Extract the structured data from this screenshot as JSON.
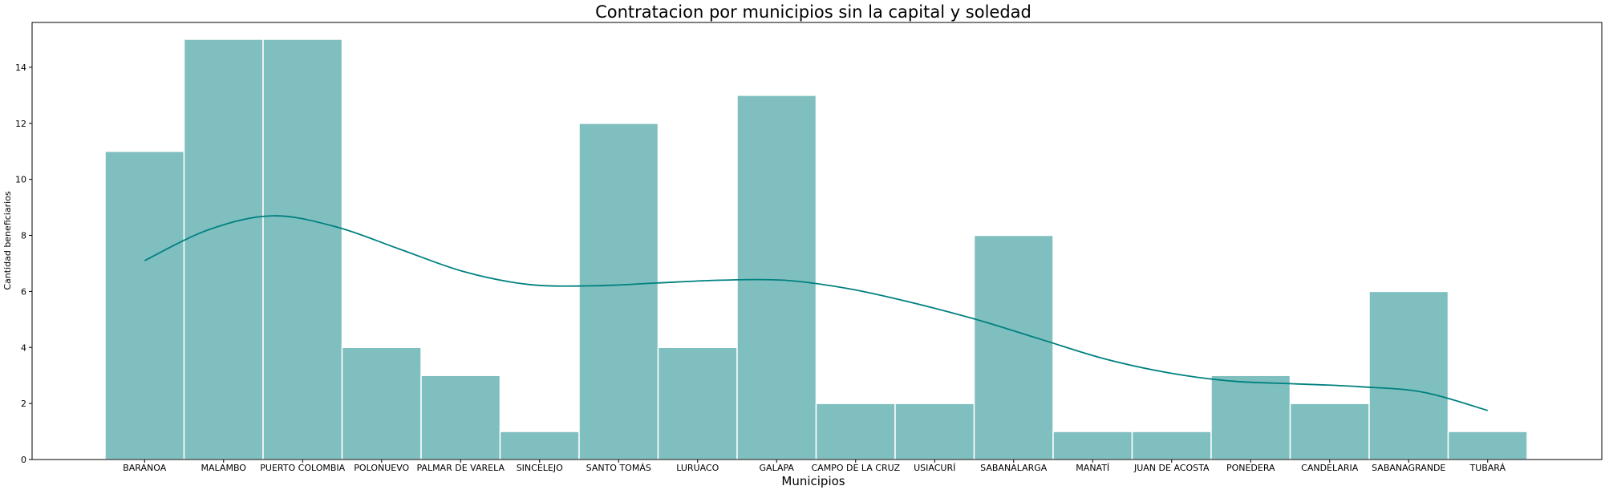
{
  "chart_data": {
    "type": "bar",
    "title": "Contratacion por municipios sin la capital y soledad",
    "xlabel": "Municipios",
    "ylabel": "Cantidad beneficiarios",
    "categories": [
      "BARANOA",
      "MALAMBO",
      "PUERTO COLOMBIA",
      "POLONUEVO",
      "PALMAR DE VARELA",
      "SINCELEJO",
      "SANTO TOMÁS",
      "LURUACO",
      "GALAPA",
      "CAMPO DE LA CRUZ",
      "USIACURÍ",
      "SABANALARGA",
      "MANATÍ",
      "JUAN DE ACOSTA",
      "PONEDERA",
      "CANDELARIA",
      "SABANAGRANDE",
      "TUBARÁ"
    ],
    "values": [
      11,
      15,
      15,
      4,
      3,
      1,
      12,
      4,
      13,
      2,
      2,
      8,
      1,
      1,
      3,
      2,
      6,
      1
    ],
    "kde": [
      7.1,
      8.2,
      8.7,
      8.3,
      7.5,
      6.7,
      6.25,
      6.2,
      6.3,
      6.4,
      6.4,
      6.1,
      5.6,
      5.0,
      4.3,
      3.6,
      3.1,
      2.8,
      2.7,
      2.6,
      2.4,
      1.75
    ],
    "ylim": [
      0,
      15.6
    ],
    "yticks": [
      0,
      2,
      4,
      6,
      8,
      10,
      12,
      14
    ],
    "colors": {
      "bar": "#80bfbf",
      "kde_line": "#008080",
      "bar_edge": "#ffffff"
    }
  }
}
